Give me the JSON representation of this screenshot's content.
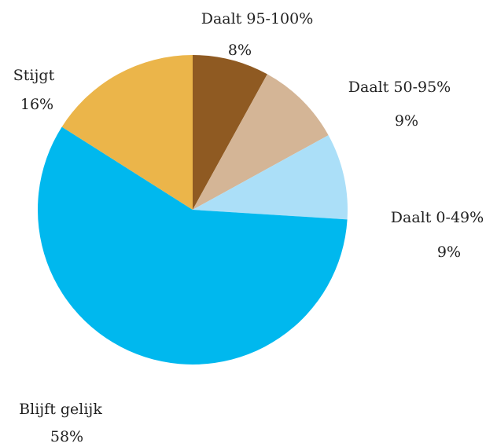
{
  "chart_data": {
    "type": "pie",
    "categories": [
      "Daalt 95-100%",
      "Daalt 50-95%",
      "Daalt 0-49%",
      "Blijft gelijk",
      "Stijgt"
    ],
    "values": [
      8,
      9,
      9,
      58,
      16
    ],
    "value_labels": [
      "8%",
      "9%",
      "9%",
      "58%",
      "16%"
    ],
    "colors": [
      "#8f5a22",
      "#d4b596",
      "#abdff8",
      "#00b8ee",
      "#ebb54a"
    ]
  }
}
